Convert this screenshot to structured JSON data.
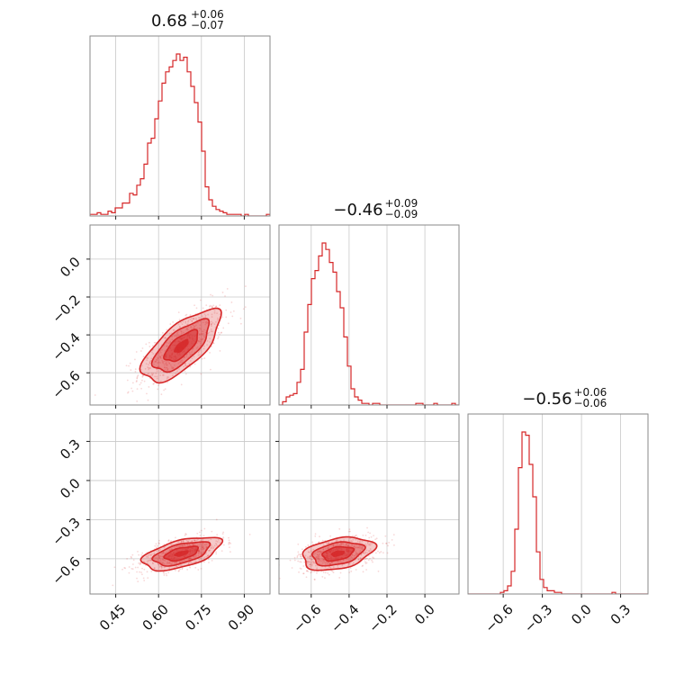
{
  "chart_data": {
    "type": "scatter",
    "figure": "corner",
    "color": "#d62728",
    "parameters": [
      {
        "title": {
          "median": "0.68",
          "upper": "+0.06",
          "lower": "−0.07"
        },
        "range": [
          0.36,
          0.99
        ],
        "ticks": [
          0.45,
          0.6,
          0.75,
          0.9
        ],
        "tick_labels": [
          "0.45",
          "0.60",
          "0.75",
          "0.90"
        ]
      },
      {
        "title": {
          "median": "−0.46",
          "upper": "+0.09",
          "lower": "−0.09"
        },
        "range": [
          -0.77,
          0.18
        ],
        "ticks": [
          -0.6,
          -0.4,
          -0.2,
          0.0
        ],
        "tick_labels": [
          "−0.6",
          "−0.4",
          "−0.2",
          "0.0"
        ]
      },
      {
        "title": {
          "median": "−0.56",
          "upper": "+0.06",
          "lower": "−0.06"
        },
        "range": [
          -0.87,
          0.51
        ],
        "ticks": [
          -0.6,
          -0.3,
          0.0,
          0.3
        ],
        "tick_labels": [
          "−0.6",
          "−0.3",
          "0.0",
          "0.3"
        ]
      }
    ],
    "histograms": [
      {
        "bins": [
          0.36,
          0.99
        ],
        "counts": [
          1,
          1,
          2,
          1,
          1,
          3,
          2,
          5,
          5,
          8,
          8,
          14,
          13,
          19,
          23,
          32,
          45,
          48,
          60,
          71,
          82,
          89,
          92,
          96,
          100,
          96,
          98,
          89,
          80,
          70,
          58,
          40,
          18,
          10,
          6,
          4,
          3,
          2,
          1,
          1,
          1,
          1,
          0,
          1,
          0,
          0,
          0,
          0,
          0,
          1
        ]
      },
      {
        "bins": [
          -0.77,
          0.18
        ],
        "counts": [
          0,
          2,
          5,
          6,
          7,
          14,
          22,
          45,
          62,
          78,
          83,
          92,
          100,
          96,
          88,
          82,
          70,
          60,
          42,
          24,
          10,
          5,
          3,
          1,
          1,
          0,
          1,
          1,
          0,
          0,
          0,
          0,
          0,
          0,
          0,
          0,
          0,
          0,
          1,
          1,
          0,
          0,
          0,
          1,
          0,
          0,
          0,
          0,
          1,
          0
        ]
      },
      {
        "bins": [
          -0.87,
          0.51
        ],
        "counts": [
          0,
          0,
          0,
          0,
          0,
          0,
          0,
          0,
          0,
          1,
          2,
          5,
          14,
          40,
          78,
          100,
          98,
          80,
          60,
          26,
          9,
          4,
          2,
          2,
          1,
          1,
          0,
          0,
          0,
          0,
          0,
          0,
          0,
          0,
          0,
          0,
          0,
          0,
          0,
          0,
          1,
          0,
          0,
          0,
          0,
          0,
          0,
          0,
          0,
          0
        ]
      }
    ],
    "pairs": [
      {
        "x": 0,
        "y": 1,
        "center": [
          0.68,
          -0.46
        ],
        "sigma": [
          0.065,
          0.09
        ],
        "rho": 0.7,
        "points": 700
      },
      {
        "x": 0,
        "y": 2,
        "center": [
          0.68,
          -0.56
        ],
        "sigma": [
          0.065,
          0.06
        ],
        "rho": 0.55,
        "points": 700
      },
      {
        "x": 1,
        "y": 2,
        "center": [
          -0.46,
          -0.56
        ],
        "sigma": [
          0.09,
          0.06
        ],
        "rho": 0.35,
        "points": 700
      }
    ],
    "grid": true
  }
}
